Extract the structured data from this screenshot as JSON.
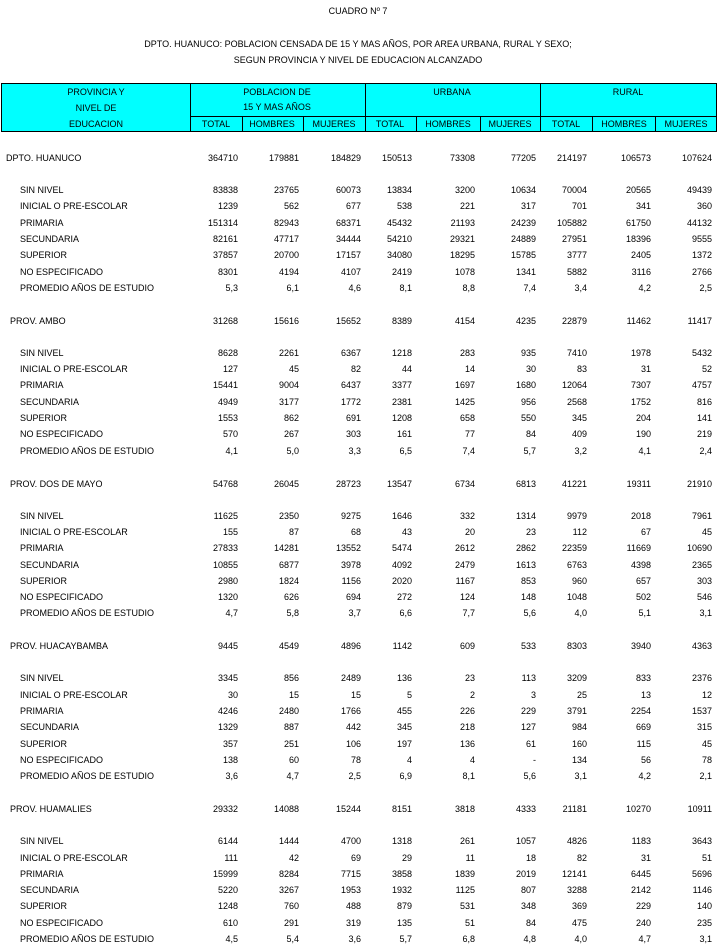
{
  "header": {
    "cuadro": "CUADRO Nº 7",
    "title_lines": [
      "DPTO. HUANUCO: POBLACION CENSADA DE 15 Y MAS AÑOS, POR AREA URBANA, RURAL Y SEXO;",
      "SEGUN PROVINCIA Y NIVEL DE EDUCACION ALCANZADO"
    ]
  },
  "table": {
    "column_header": {
      "first": [
        "PROVINCIA Y",
        "NIVEL DE",
        "EDUCACION"
      ],
      "poblacion": [
        "POBLACION DE",
        "15 Y MAS AÑOS"
      ],
      "urbana": "URBANA",
      "rural": "RURAL",
      "sub": [
        "TOTAL",
        "HOMBRES",
        "MUJERES",
        "TOTAL",
        "HOMBRES",
        "MUJERES",
        "TOTAL",
        "HOMBRES",
        "MUJERES"
      ]
    },
    "groups": [
      {
        "name": "DPTO. HUANUCO",
        "values": [
          364710,
          179881,
          184829,
          150513,
          73308,
          77205,
          214197,
          106573,
          107624
        ],
        "rows": [
          {
            "label": "SIN NIVEL",
            "values": [
              83838,
              23765,
              60073,
              13834,
              3200,
              10634,
              70004,
              20565,
              49439
            ]
          },
          {
            "label": "INICIAL O PRE-ESCOLAR",
            "values": [
              1239,
              562,
              677,
              538,
              221,
              317,
              701,
              341,
              360
            ]
          },
          {
            "label": "PRIMARIA",
            "values": [
              151314,
              82943,
              68371,
              45432,
              21193,
              24239,
              105882,
              61750,
              44132
            ]
          },
          {
            "label": "SECUNDARIA",
            "values": [
              82161,
              47717,
              34444,
              54210,
              29321,
              24889,
              27951,
              18396,
              9555
            ]
          },
          {
            "label": "SUPERIOR",
            "values": [
              37857,
              20700,
              17157,
              34080,
              18295,
              15785,
              3777,
              2405,
              1372
            ]
          },
          {
            "label": "NO ESPECIFICADO",
            "values": [
              8301,
              4194,
              4107,
              2419,
              1078,
              1341,
              5882,
              3116,
              2766
            ]
          },
          {
            "label": "PROMEDIO AÑOS DE ESTUDIO",
            "values": [
              "5,3",
              "6,1",
              "4,6",
              "8,1",
              "8,8",
              "7,4",
              "3,4",
              "4,2",
              "2,5"
            ]
          }
        ]
      },
      {
        "name": "PROV. AMBO",
        "values": [
          31268,
          15616,
          15652,
          8389,
          4154,
          4235,
          22879,
          11462,
          11417
        ],
        "rows": [
          {
            "label": "SIN NIVEL",
            "values": [
              8628,
              2261,
              6367,
              1218,
              283,
              935,
              7410,
              1978,
              5432
            ]
          },
          {
            "label": "INICIAL O PRE-ESCOLAR",
            "values": [
              127,
              45,
              82,
              44,
              14,
              30,
              83,
              31,
              52
            ]
          },
          {
            "label": "PRIMARIA",
            "values": [
              15441,
              9004,
              6437,
              3377,
              1697,
              1680,
              12064,
              7307,
              4757
            ]
          },
          {
            "label": "SECUNDARIA",
            "values": [
              4949,
              3177,
              1772,
              2381,
              1425,
              956,
              2568,
              1752,
              816
            ]
          },
          {
            "label": "SUPERIOR",
            "values": [
              1553,
              862,
              691,
              1208,
              658,
              550,
              345,
              204,
              141
            ]
          },
          {
            "label": "NO ESPECIFICADO",
            "values": [
              570,
              267,
              303,
              161,
              77,
              84,
              409,
              190,
              219
            ]
          },
          {
            "label": "PROMEDIO AÑOS DE ESTUDIO",
            "values": [
              "4,1",
              "5,0",
              "3,3",
              "6,5",
              "7,4",
              "5,7",
              "3,2",
              "4,1",
              "2,4"
            ]
          }
        ]
      },
      {
        "name": "PROV. DOS DE MAYO",
        "values": [
          54768,
          26045,
          28723,
          13547,
          6734,
          6813,
          41221,
          19311,
          21910
        ],
        "rows": [
          {
            "label": "SIN NIVEL",
            "values": [
              11625,
              2350,
              9275,
              1646,
              332,
              1314,
              9979,
              2018,
              7961
            ]
          },
          {
            "label": "INICIAL O PRE-ESCOLAR",
            "values": [
              155,
              87,
              68,
              43,
              20,
              23,
              112,
              67,
              45
            ]
          },
          {
            "label": "PRIMARIA",
            "values": [
              27833,
              14281,
              13552,
              5474,
              2612,
              2862,
              22359,
              11669,
              10690
            ]
          },
          {
            "label": "SECUNDARIA",
            "values": [
              10855,
              6877,
              3978,
              4092,
              2479,
              1613,
              6763,
              4398,
              2365
            ]
          },
          {
            "label": "SUPERIOR",
            "values": [
              2980,
              1824,
              1156,
              2020,
              1167,
              853,
              960,
              657,
              303
            ]
          },
          {
            "label": "NO ESPECIFICADO",
            "values": [
              1320,
              626,
              694,
              272,
              124,
              148,
              1048,
              502,
              546
            ]
          },
          {
            "label": "PROMEDIO AÑOS DE ESTUDIO",
            "values": [
              "4,7",
              "5,8",
              "3,7",
              "6,6",
              "7,7",
              "5,6",
              "4,0",
              "5,1",
              "3,1"
            ]
          }
        ]
      },
      {
        "name": "PROV. HUACAYBAMBA",
        "values": [
          9445,
          4549,
          4896,
          1142,
          609,
          533,
          8303,
          3940,
          4363
        ],
        "rows": [
          {
            "label": "SIN NIVEL",
            "values": [
              3345,
              856,
              2489,
              136,
              23,
              113,
              3209,
              833,
              2376
            ]
          },
          {
            "label": "INICIAL O PRE-ESCOLAR",
            "values": [
              30,
              15,
              15,
              5,
              2,
              3,
              25,
              13,
              12
            ]
          },
          {
            "label": "PRIMARIA",
            "values": [
              4246,
              2480,
              1766,
              455,
              226,
              229,
              3791,
              2254,
              1537
            ]
          },
          {
            "label": "SECUNDARIA",
            "values": [
              1329,
              887,
              442,
              345,
              218,
              127,
              984,
              669,
              315
            ]
          },
          {
            "label": "SUPERIOR",
            "values": [
              357,
              251,
              106,
              197,
              136,
              61,
              160,
              115,
              45
            ]
          },
          {
            "label": "NO ESPECIFICADO",
            "values": [
              138,
              60,
              78,
              4,
              4,
              "-",
              134,
              56,
              78
            ]
          },
          {
            "label": "PROMEDIO AÑOS DE ESTUDIO",
            "values": [
              "3,6",
              "4,7",
              "2,5",
              "6,9",
              "8,1",
              "5,6",
              "3,1",
              "4,2",
              "2,1"
            ]
          }
        ]
      },
      {
        "name": "PROV. HUAMALIES",
        "values": [
          29332,
          14088,
          15244,
          8151,
          3818,
          4333,
          21181,
          10270,
          10911
        ],
        "rows": [
          {
            "label": "SIN NIVEL",
            "values": [
              6144,
              1444,
              4700,
              1318,
              261,
              1057,
              4826,
              1183,
              3643
            ]
          },
          {
            "label": "INICIAL O PRE-ESCOLAR",
            "values": [
              111,
              42,
              69,
              29,
              11,
              18,
              82,
              31,
              51
            ]
          },
          {
            "label": "PRIMARIA",
            "values": [
              15999,
              8284,
              7715,
              3858,
              1839,
              2019,
              12141,
              6445,
              5696
            ]
          },
          {
            "label": "SECUNDARIA",
            "values": [
              5220,
              3267,
              1953,
              1932,
              1125,
              807,
              3288,
              2142,
              1146
            ]
          },
          {
            "label": "SUPERIOR",
            "values": [
              1248,
              760,
              488,
              879,
              531,
              348,
              369,
              229,
              140
            ]
          },
          {
            "label": "NO ESPECIFICADO",
            "values": [
              610,
              291,
              319,
              135,
              51,
              84,
              475,
              240,
              235
            ]
          },
          {
            "label": "PROMEDIO AÑOS DE ESTUDIO",
            "values": [
              "4,5",
              "5,4",
              "3,6",
              "5,7",
              "6,8",
              "4,8",
              "4,0",
              "4,7",
              "3,1"
            ]
          }
        ]
      }
    ]
  }
}
